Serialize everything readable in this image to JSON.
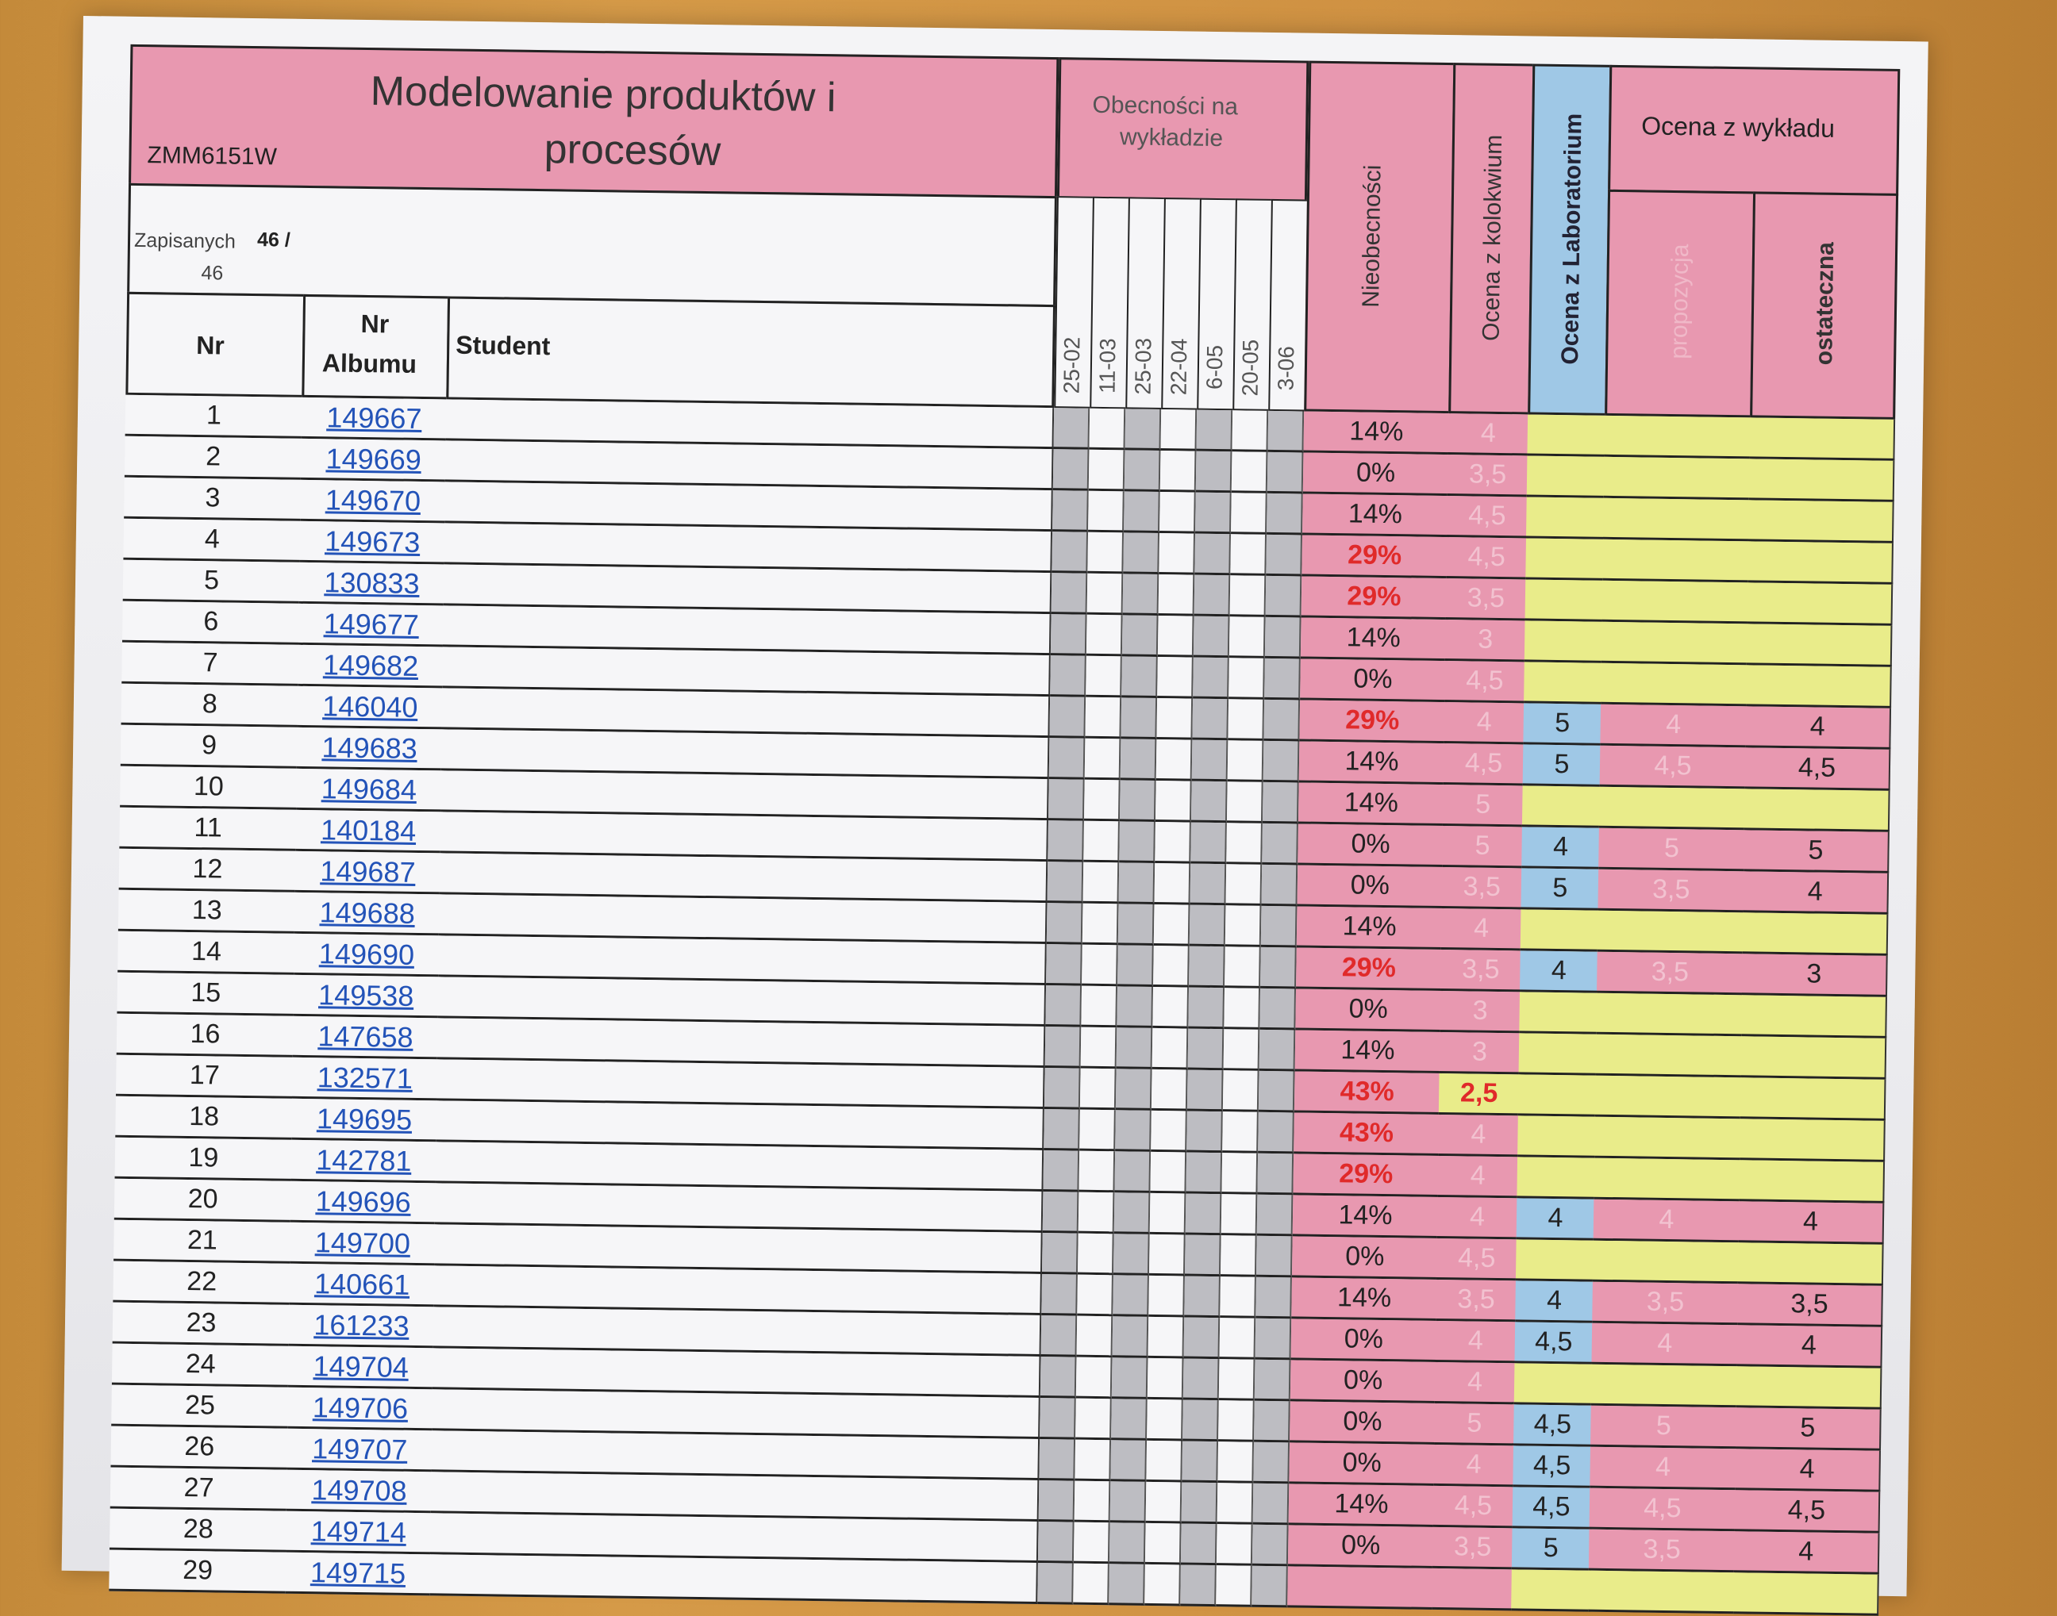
{
  "header": {
    "title": "Modelowanie produktów i procesów",
    "title_line1": "Modelowanie produktów i",
    "title_line2": "procesów",
    "code": "ZMM6151W",
    "enrolled_label": "Zapisanych",
    "enrolled_value": "46 /",
    "enrolled_total": "46",
    "attendance_header": "Obecności na wykładzie",
    "attendance_line1": "Obecności na",
    "attendance_line2": "wykładzie",
    "absence_header": "Nieobecności",
    "colloquium_header": "Ocena z kolokwium",
    "lab_header": "Ocena z Laboratorium",
    "lecture_header": "Ocena z wykładu",
    "proposal_header": "propozycja",
    "final_header": "ostateczna",
    "col_nr": "Nr",
    "col_album_line1": "Nr",
    "col_album_line2": "Albumu",
    "col_student": "Student",
    "dates": [
      "25-02",
      "11-03",
      "25-03",
      "22-04",
      "6-05",
      "20-05",
      "3-06"
    ]
  },
  "rows": [
    {
      "nr": "1",
      "album": "149667",
      "absence": "14%",
      "colloquium": "4",
      "lab": "",
      "proposal": "",
      "final": ""
    },
    {
      "nr": "2",
      "album": "149669",
      "absence": "0%",
      "colloquium": "3,5",
      "lab": "",
      "proposal": "",
      "final": ""
    },
    {
      "nr": "3",
      "album": "149670",
      "absence": "14%",
      "colloquium": "4,5",
      "lab": "",
      "proposal": "",
      "final": ""
    },
    {
      "nr": "4",
      "album": "149673",
      "absence": "29%",
      "colloquium": "4,5",
      "lab": "",
      "proposal": "",
      "final": ""
    },
    {
      "nr": "5",
      "album": "130833",
      "absence": "29%",
      "colloquium": "3,5",
      "lab": "",
      "proposal": "",
      "final": ""
    },
    {
      "nr": "6",
      "album": "149677",
      "absence": "14%",
      "colloquium": "3",
      "lab": "",
      "proposal": "",
      "final": ""
    },
    {
      "nr": "7",
      "album": "149682",
      "absence": "0%",
      "colloquium": "4,5",
      "lab": "",
      "proposal": "",
      "final": ""
    },
    {
      "nr": "8",
      "album": "146040",
      "absence": "29%",
      "colloquium": "4",
      "lab": "5",
      "proposal": "4",
      "final": "4"
    },
    {
      "nr": "9",
      "album": "149683",
      "absence": "14%",
      "colloquium": "4,5",
      "lab": "5",
      "proposal": "4,5",
      "final": "4,5"
    },
    {
      "nr": "10",
      "album": "149684",
      "absence": "14%",
      "colloquium": "5",
      "lab": "",
      "proposal": "",
      "final": ""
    },
    {
      "nr": "11",
      "album": "140184",
      "absence": "0%",
      "colloquium": "5",
      "lab": "4",
      "proposal": "5",
      "final": "5"
    },
    {
      "nr": "12",
      "album": "149687",
      "absence": "0%",
      "colloquium": "3,5",
      "lab": "5",
      "proposal": "3,5",
      "final": "4"
    },
    {
      "nr": "13",
      "album": "149688",
      "absence": "14%",
      "colloquium": "4",
      "lab": "",
      "proposal": "",
      "final": ""
    },
    {
      "nr": "14",
      "album": "149690",
      "absence": "29%",
      "colloquium": "3,5",
      "lab": "4",
      "proposal": "3,5",
      "final": "3"
    },
    {
      "nr": "15",
      "album": "149538",
      "absence": "0%",
      "colloquium": "3",
      "lab": "",
      "proposal": "",
      "final": ""
    },
    {
      "nr": "16",
      "album": "147658",
      "absence": "14%",
      "colloquium": "3",
      "lab": "",
      "proposal": "",
      "final": ""
    },
    {
      "nr": "17",
      "album": "132571",
      "absence": "43%",
      "colloquium": "2,5",
      "lab": "",
      "proposal": "",
      "final": ""
    },
    {
      "nr": "18",
      "album": "149695",
      "absence": "43%",
      "colloquium": "4",
      "lab": "",
      "proposal": "",
      "final": ""
    },
    {
      "nr": "19",
      "album": "142781",
      "absence": "29%",
      "colloquium": "4",
      "lab": "",
      "proposal": "",
      "final": ""
    },
    {
      "nr": "20",
      "album": "149696",
      "absence": "14%",
      "colloquium": "4",
      "lab": "4",
      "proposal": "4",
      "final": "4"
    },
    {
      "nr": "21",
      "album": "149700",
      "absence": "0%",
      "colloquium": "4,5",
      "lab": "",
      "proposal": "",
      "final": ""
    },
    {
      "nr": "22",
      "album": "140661",
      "absence": "14%",
      "colloquium": "3,5",
      "lab": "4",
      "proposal": "3,5",
      "final": "3,5"
    },
    {
      "nr": "23",
      "album": "161233",
      "absence": "0%",
      "colloquium": "4",
      "lab": "4,5",
      "proposal": "4",
      "final": "4"
    },
    {
      "nr": "24",
      "album": "149704",
      "absence": "0%",
      "colloquium": "4",
      "lab": "",
      "proposal": "",
      "final": ""
    },
    {
      "nr": "25",
      "album": "149706",
      "absence": "0%",
      "colloquium": "5",
      "lab": "4,5",
      "proposal": "5",
      "final": "5"
    },
    {
      "nr": "26",
      "album": "149707",
      "absence": "0%",
      "colloquium": "4",
      "lab": "4,5",
      "proposal": "4",
      "final": "4"
    },
    {
      "nr": "27",
      "album": "149708",
      "absence": "14%",
      "colloquium": "4,5",
      "lab": "4,5",
      "proposal": "4,5",
      "final": "4,5"
    },
    {
      "nr": "28",
      "album": "149714",
      "absence": "0%",
      "colloquium": "3,5",
      "lab": "5",
      "proposal": "3,5",
      "final": "4"
    },
    {
      "nr": "29",
      "album": "149715",
      "absence": "",
      "colloquium": "",
      "lab": "",
      "proposal": "",
      "final": ""
    }
  ],
  "colors": {
    "pink": "#e898b0",
    "blue": "#9fc8e6",
    "yellow": "#e9ec8a",
    "link": "#2353b8",
    "red": "#e02a2a"
  }
}
